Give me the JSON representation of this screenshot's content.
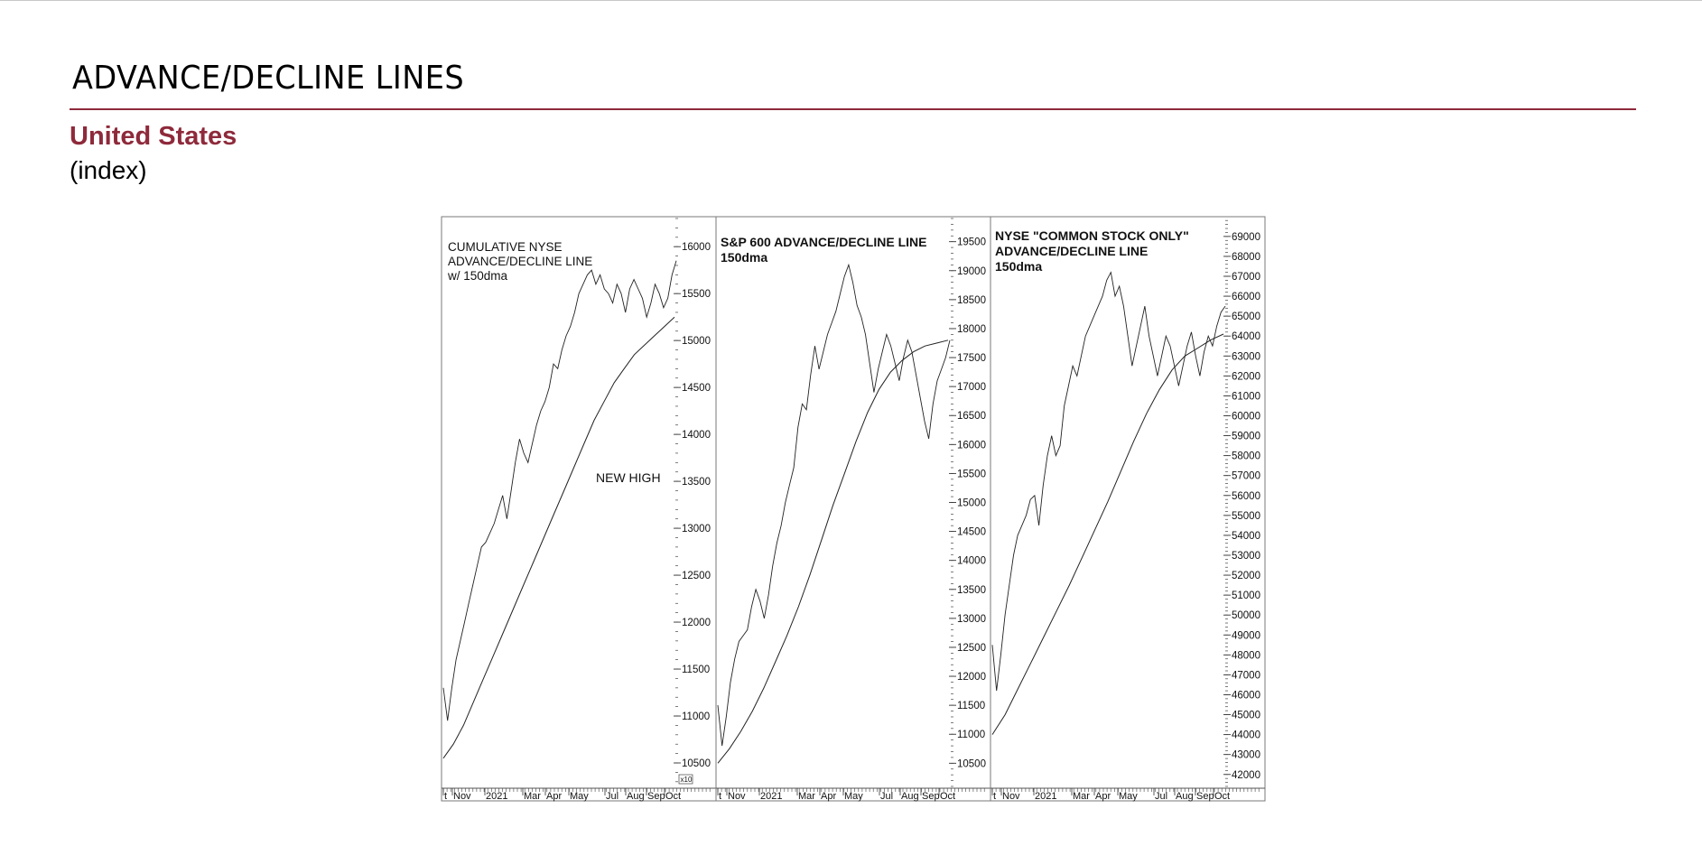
{
  "header": {
    "title": "ADVANCE/DECLINE LINES",
    "region": "United States",
    "unit": "(index)"
  },
  "colors": {
    "accent": "#8e2a3b",
    "line": "#222222",
    "frame": "#7a7a7a"
  },
  "chart_data": [
    {
      "type": "line",
      "annotation_lines": [
        "CUMULATIVE NYSE",
        "ADVANCE/DECLINE LINE",
        "w/ 150dma"
      ],
      "annotation_bold": false,
      "note": "NEW HIGH",
      "multiplier": "x10",
      "ylim": [
        10250,
        16300
      ],
      "yticks": [
        10500,
        11000,
        11500,
        12000,
        12500,
        13000,
        13500,
        14000,
        14500,
        15000,
        15500,
        16000
      ],
      "xticks": [
        "t",
        "Nov",
        "2021",
        "Mar",
        "Apr",
        "May",
        "Jul",
        "Aug",
        "Sep",
        "Oct"
      ],
      "series": [
        {
          "values": [
            11300,
            10950,
            11300,
            11600,
            11800,
            12000,
            12200,
            12400,
            12600,
            12800,
            12850,
            12950,
            13050,
            13200,
            13350,
            13100,
            13400,
            13700,
            13950,
            13800,
            13700,
            13900,
            14100,
            14250,
            14350,
            14500,
            14750,
            14700,
            14900,
            15050,
            15150,
            15300,
            15500,
            15600,
            15700,
            15750,
            15600,
            15700,
            15550,
            15500,
            15400,
            15600,
            15500,
            15300,
            15550,
            15650,
            15550,
            15450,
            15250,
            15400,
            15600,
            15500,
            15350,
            15450,
            15700,
            15850
          ]
        },
        {
          "values": [
            10550,
            10700,
            10900,
            11150,
            11400,
            11650,
            11900,
            12150,
            12400,
            12650,
            12900,
            13150,
            13400,
            13650,
            13900,
            14150,
            14350,
            14550,
            14700,
            14850,
            14950,
            15050,
            15150,
            15250
          ]
        }
      ]
    },
    {
      "type": "line",
      "annotation_lines": [
        "S&P 600 ADVANCE/DECLINE LINE",
        "150dma"
      ],
      "annotation_bold": true,
      "ylim": [
        10100,
        19900
      ],
      "yticks": [
        10500,
        11000,
        11500,
        12000,
        12500,
        13000,
        13500,
        14000,
        14500,
        15000,
        15500,
        16000,
        16500,
        17000,
        17500,
        18000,
        18500,
        19000,
        19500
      ],
      "xticks": [
        "t",
        "Nov",
        "2021",
        "Mar",
        "Apr",
        "May",
        "Jul",
        "Aug",
        "Sep",
        "Oct"
      ],
      "series": [
        {
          "values": [
            11500,
            10800,
            11300,
            11900,
            12300,
            12600,
            12700,
            12800,
            13200,
            13500,
            13300,
            13000,
            13400,
            13900,
            14300,
            14600,
            15000,
            15300,
            15600,
            16300,
            16700,
            16600,
            17200,
            17700,
            17300,
            17600,
            17900,
            18100,
            18300,
            18600,
            18900,
            19100,
            18800,
            18400,
            18200,
            17900,
            17400,
            16900,
            17300,
            17600,
            17900,
            17700,
            17400,
            17100,
            17500,
            17800,
            17600,
            17200,
            16800,
            16400,
            16100,
            16700,
            17100,
            17300,
            17500,
            17800
          ]
        },
        {
          "values": [
            10500,
            10750,
            11050,
            11400,
            11800,
            12250,
            12700,
            13200,
            13750,
            14350,
            14950,
            15500,
            16050,
            16550,
            16950,
            17250,
            17450,
            17600,
            17700,
            17750,
            17800
          ]
        }
      ]
    },
    {
      "type": "line",
      "annotation_lines": [
        "NYSE \"COMMON STOCK ONLY\"",
        "ADVANCE/DECLINE LINE",
        "150dma"
      ],
      "annotation_bold": true,
      "ylim": [
        41400,
        69900
      ],
      "yticks": [
        42000,
        43000,
        44000,
        45000,
        46000,
        47000,
        48000,
        49000,
        50000,
        51000,
        52000,
        53000,
        54000,
        55000,
        56000,
        57000,
        58000,
        59000,
        60000,
        61000,
        62000,
        63000,
        64000,
        65000,
        66000,
        67000,
        68000,
        69000
      ],
      "xticks": [
        "t",
        "Nov",
        "2021",
        "Mar",
        "Apr",
        "May",
        "Jul",
        "Aug",
        "Sep",
        "Oct"
      ],
      "series": [
        {
          "values": [
            48500,
            46200,
            48000,
            50000,
            51500,
            53000,
            54000,
            54500,
            55000,
            55800,
            56000,
            54500,
            56500,
            58000,
            59000,
            58000,
            58500,
            60500,
            61500,
            62500,
            62000,
            63000,
            64000,
            64500,
            65000,
            65500,
            66000,
            66800,
            67200,
            66000,
            66500,
            65500,
            64000,
            62500,
            63500,
            64500,
            65500,
            64000,
            63000,
            62000,
            63000,
            64000,
            63500,
            62500,
            61500,
            62500,
            63500,
            64200,
            63000,
            62000,
            63200,
            64000,
            63500,
            64500,
            65200,
            65500
          ]
        },
        {
          "values": [
            44000,
            45000,
            46300,
            47600,
            48900,
            50200,
            51500,
            52900,
            54300,
            55700,
            57200,
            58700,
            60100,
            61300,
            62300,
            63000,
            63400,
            63800,
            64100
          ]
        }
      ]
    }
  ]
}
